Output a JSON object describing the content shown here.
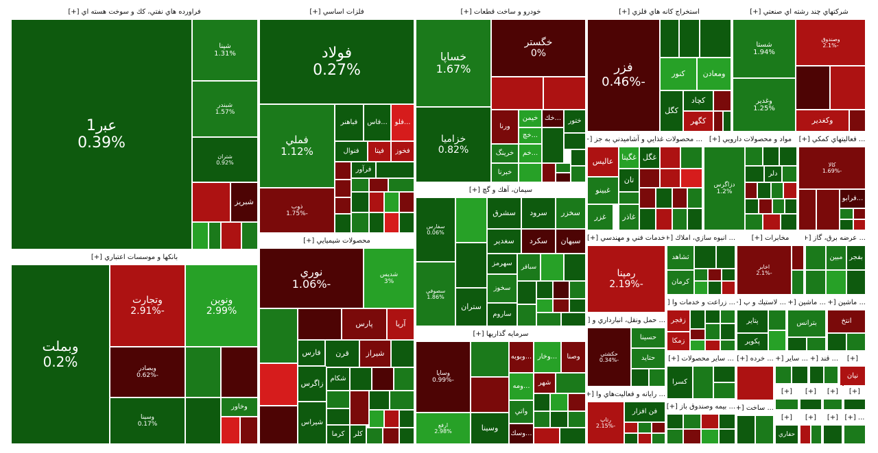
{
  "colors": {
    "g1": "#0e5a0e",
    "g2": "#1b7a1b",
    "g3": "#27a127",
    "g4": "#33c233",
    "r1": "#4d0404",
    "r2": "#7a0a0a",
    "r3": "#ad1212",
    "r4": "#d61c1c",
    "header_bg": "#ffffff"
  },
  "sectors": {
    "oil": "فراورده هاي نفتي، كك و سوخت هسته اي [+]",
    "metals": "فلزات اساسي [+]",
    "auto": "خودرو و ساخت قطعات [+]",
    "mining": "استخراج كانه هاي فلزي [+]",
    "multi": "شركتهاي چند رشته اي صنعتي [+]",
    "banks": "بانكها و موسسات اعتباري [+]",
    "chem": "محصولات شيميايي [+]",
    "cement": "سيمان، آهك و گچ [+]",
    "invest": "سرمايه گذاريها [+]",
    "food": "... محصولات غذايي و آشاميدني به جز [+]",
    "pharma": "مواد و محصولات دارويي [+]",
    "auxiliary": "... فعاليتهاي كمكي [+]",
    "tech": "خدمات فني و مهندسي [+]",
    "building": "... انبوه سازي، املاك [+]",
    "telecom": "مخابرات [+]",
    "power": "... عرضه برق، گاز [+]",
    "transport": "... حمل ونقل، انبارداري و [+]",
    "agri": "... زراعت و خدمات وا [+]",
    "plastic": "... لاستيك و پ [+]",
    "machine": "... ماشين [+]",
    "machine2": "... ماشين [+]",
    "info": "... رايانه و فعاليت‌هاي وا [+]",
    "other_products": "... ساير محصولات [+]",
    "retail": "... خرده [+]",
    "other": "... ساير [+]",
    "sugar": "... قند [+]",
    "insurance": "... بيمه وصندوق باز [+]",
    "construction": "... ساخت [+]",
    "s1": "[+]",
    "s2": "[+]",
    "s3": "[+]",
    "s4": "[+]",
    "s5": "[+]",
    "s6": "[+]",
    "s7": "[+]",
    "s8": "[+]",
    "s9": "... [+]",
    "s10": "[+]"
  },
  "stocks": {
    "ri1": {
      "sym": "ﻋﺒر1",
      "chg": "0.39%"
    },
    "shapna": {
      "sym": "شپنا",
      "chg": "1.31%"
    },
    "shbandar": {
      "sym": "شبندر",
      "chg": "1.57%"
    },
    "shtran": {
      "sym": "شتران",
      "chg": "0.92%"
    },
    "shabriz": {
      "sym": "شبريز",
      "chg": ""
    },
    "foolad": {
      "sym": "فولاد",
      "chg": "0.27%"
    },
    "fameli": {
      "sym": "فملي",
      "chg": "1.12%"
    },
    "zob": {
      "sym": "ذوب",
      "chg": "-1.75%"
    },
    "fabahonar": {
      "sym": "فباهنر",
      "chg": ""
    },
    "fas": {
      "sym": "...فاس",
      "chg": ""
    },
    "foolav": {
      "sym": "...فلو",
      "chg": ""
    },
    "fenovol": {
      "sym": "فنوال",
      "chg": ""
    },
    "fita": {
      "sym": "فيتا",
      "chg": ""
    },
    "fkhoz": {
      "sym": "فخوز",
      "chg": ""
    },
    "fravar": {
      "sym": "فرآور",
      "chg": ""
    },
    "khsapa": {
      "sym": "خساپا",
      "chg": "1.67%"
    },
    "khazamia": {
      "sym": "خزاميا",
      "chg": "0.82%"
    },
    "khgostar": {
      "sym": "خگستر",
      "chg": "0%"
    },
    "vrena": {
      "sym": "ورنا",
      "chg": ""
    },
    "khimen": {
      "sym": "خيمن",
      "chg": ""
    },
    "khkh": {
      "sym": "...خك",
      "chg": ""
    },
    "khtor": {
      "sym": "ختور",
      "chg": ""
    },
    "khring": {
      "sym": "خرينگ",
      "chg": ""
    },
    "khbara": {
      "sym": "خبرنا",
      "chg": ""
    },
    "khkham": {
      "sym": "...خم",
      "chg": ""
    },
    "khchkh": {
      "sym": "...خچ",
      "chg": ""
    },
    "fazar": {
      "sym": "فزر",
      "chg": "-0.46%"
    },
    "kaknor": {
      "sym": "كنور",
      "chg": ""
    },
    "vamadn": {
      "sym": "ومعادن",
      "chg": ""
    },
    "kgol": {
      "sym": "كگل",
      "chg": ""
    },
    "kchad": {
      "sym": "كچاد",
      "chg": ""
    },
    "kgohar": {
      "sym": "كگهر",
      "chg": ""
    },
    "shasta": {
      "sym": "شستا",
      "chg": "1.94%"
    },
    "vghadir": {
      "sym": "وغدير",
      "chg": "1.25%"
    },
    "vsandog": {
      "sym": "وصندوق",
      "chg": "-2.1%"
    },
    "vkghadir": {
      "sym": "وكغدير",
      "chg": ""
    },
    "vbmelat": {
      "sym": "وبملت",
      "chg": "0.2%"
    },
    "vtejarat": {
      "sym": "وتجارت",
      "chg": "-2.91%"
    },
    "vnovin": {
      "sym": "ونوين",
      "chg": "2.99%"
    },
    "vbsader": {
      "sym": "وبصادر",
      "chg": "-0.62%"
    },
    "vpina": {
      "sym": "وسينا",
      "chg": "0.17%"
    },
    "vkhavar": {
      "sym": "وخاور",
      "chg": ""
    },
    "nouri": {
      "sym": "نوري",
      "chg": "-1.06%"
    },
    "shdis": {
      "sym": "شديس",
      "chg": "3%"
    },
    "pars": {
      "sym": "پارس",
      "chg": ""
    },
    "aria": {
      "sym": "آريا",
      "chg": ""
    },
    "fars": {
      "sym": "فارس",
      "chg": ""
    },
    "qarn": {
      "sym": "قرن",
      "chg": ""
    },
    "shiraz": {
      "sym": "شيراز",
      "chg": ""
    },
    "zagros": {
      "sym": "زاگرس",
      "chg": ""
    },
    "shkam": {
      "sym": "شكام",
      "chg": ""
    },
    "shiras": {
      "sym": "شيراس",
      "chg": ""
    },
    "kerma": {
      "sym": "كرما",
      "chg": ""
    },
    "kal": {
      "sym": "كلر",
      "chg": ""
    },
    "sfars": {
      "sym": "سفارس",
      "chg": "0.06%"
    },
    "ssofi": {
      "sym": "سصوفي",
      "chg": "1.86%"
    },
    "staran": {
      "sym": "ستران",
      "chg": ""
    },
    "sshargh": {
      "sym": "سشرق",
      "chg": ""
    },
    "srood": {
      "sym": "سرود",
      "chg": ""
    },
    "skhazar": {
      "sym": "سخزر",
      "chg": ""
    },
    "sghadir": {
      "sym": "سغدير",
      "chg": ""
    },
    "skord": {
      "sym": "سكرد",
      "chg": ""
    },
    "sbahan": {
      "sym": "سبهان",
      "chg": ""
    },
    "sharmoz": {
      "sym": "سهرمز",
      "chg": ""
    },
    "sbaghar": {
      "sym": "سباقر",
      "chg": ""
    },
    "skhooz": {
      "sym": "سخوز",
      "chg": ""
    },
    "saroom": {
      "sym": "ساروم",
      "chg": ""
    },
    "vsapa": {
      "sym": "وساپا",
      "chg": "-0.99%"
    },
    "vsina": {
      "sym": "وسينا",
      "chg": ""
    },
    "vapaya": {
      "sym": "ارفع",
      "chg": "2.98%"
    },
    "vbooye": {
      "sym": "...وبوبه",
      "chg": ""
    },
    "vkhar": {
      "sym": "...وخار",
      "chg": ""
    },
    "vsna": {
      "sym": "وصنا",
      "chg": ""
    },
    "shahr": {
      "sym": "شهر",
      "chg": ""
    },
    "vati": {
      "sym": "واتي",
      "chg": ""
    },
    "vsk": {
      "sym": "...وسك",
      "chg": ""
    },
    "vbomeh": {
      "sym": "...ومه",
      "chg": ""
    },
    "alis": {
      "sym": "عاليس",
      "chg": ""
    },
    "ghgita": {
      "sym": "غگيتا",
      "chg": ""
    },
    "ghgol": {
      "sym": "غگل",
      "chg": ""
    },
    "tan": {
      "sym": "تان",
      "chg": ""
    },
    "ghbino": {
      "sym": "غبينو",
      "chg": ""
    },
    "ghzar": {
      "sym": "غزر",
      "chg": ""
    },
    "ghadar": {
      "sym": "غاذر",
      "chg": ""
    },
    "dzagros": {
      "sym": "دزاگرس",
      "chg": "1.2%"
    },
    "dlar": {
      "sym": "دلر",
      "chg": ""
    },
    "kala": {
      "sym": "كالا",
      "chg": "-1.69%"
    },
    "fravbo": {
      "sym": "...فرابو",
      "chg": ""
    },
    "ramina": {
      "sym": "رمپنا",
      "chg": "-2.19%"
    },
    "tshahd": {
      "sym": "ثشاهد",
      "chg": ""
    },
    "kerman": {
      "sym": "كرمان",
      "chg": ""
    },
    "akhabar": {
      "sym": "اخابر",
      "chg": "-2.1%"
    },
    "bfajr": {
      "sym": "بفجر",
      "chg": ""
    },
    "mibn": {
      "sym": "مبين",
      "chg": ""
    },
    "hkeshti": {
      "sym": "حكشتي",
      "chg": "-0.34%"
    },
    "hsina": {
      "sym": "حسينا",
      "chg": ""
    },
    "htaid": {
      "sym": "حتايد",
      "chg": ""
    },
    "zfajr": {
      "sym": "زفجر",
      "chg": ""
    },
    "zmaka": {
      "sym": "زمكا",
      "chg": ""
    },
    "ptayr": {
      "sym": "پتاير",
      "chg": ""
    },
    "pkavir": {
      "sym": "پكوير",
      "chg": ""
    },
    "btranas": {
      "sym": "بترانس",
      "chg": ""
    },
    "antakh": {
      "sym": "انتخ",
      "chg": ""
    },
    "rtaplet": {
      "sym": "رتاپ",
      "chg": "-2.15%"
    },
    "fanafzar": {
      "sym": "فن افزار",
      "chg": ""
    },
    "ksra": {
      "sym": "كسرا",
      "chg": ""
    },
    "nian": {
      "sym": "نيان",
      "chg": ""
    },
    "hfari": {
      "sym": "حفاري",
      "chg": ""
    }
  }
}
